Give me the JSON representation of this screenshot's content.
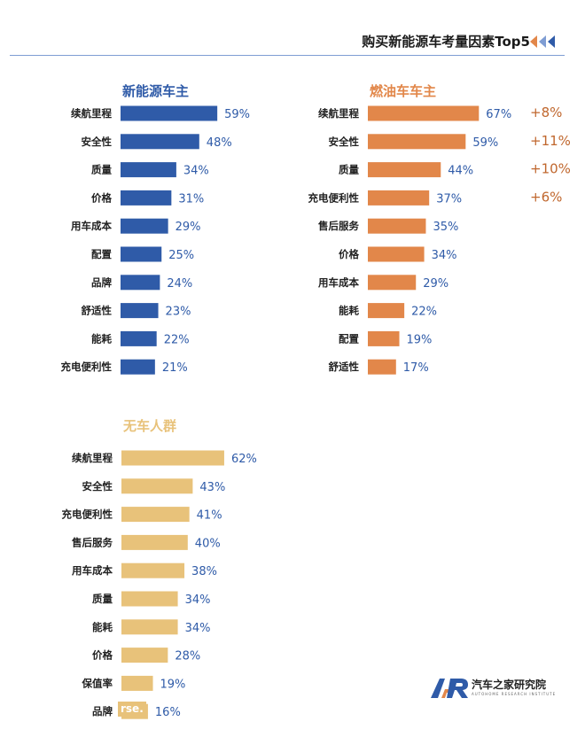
{
  "header": {
    "title": "购买新能源车考量因素Top5"
  },
  "brand": {
    "name": "汽车之家研究院",
    "subtitle": "AUTOHOME RESEARCH INSTITUTE",
    "watermark": "rse."
  },
  "colors": {
    "blue": "#2f5ba8",
    "orange": "#e2874a",
    "yellow": "#e8c27a",
    "value_text": "#2f5ba8",
    "delta_text": "#c0672e"
  },
  "chart_data": [
    {
      "type": "bar",
      "orientation": "horizontal",
      "title": "新能源车主",
      "categories": [
        "续航里程",
        "安全性",
        "质量",
        "价格",
        "用车成本",
        "配置",
        "品牌",
        "舒适性",
        "能耗",
        "充电便利性"
      ],
      "values": [
        59,
        48,
        34,
        31,
        29,
        25,
        24,
        23,
        22,
        21
      ],
      "labels": [
        "59%",
        "48%",
        "34%",
        "31%",
        "29%",
        "25%",
        "24%",
        "23%",
        "22%",
        "21%"
      ],
      "unit": "%"
    },
    {
      "type": "bar",
      "orientation": "horizontal",
      "title": "燃油车车主",
      "categories": [
        "续航里程",
        "安全性",
        "质量",
        "充电便利性",
        "售后服务",
        "价格",
        "用车成本",
        "能耗",
        "配置",
        "舒适性"
      ],
      "values": [
        67,
        59,
        44,
        37,
        35,
        34,
        29,
        22,
        19,
        17
      ],
      "labels": [
        "67%",
        "59%",
        "44%",
        "37%",
        "35%",
        "34%",
        "29%",
        "22%",
        "19%",
        "17%"
      ],
      "deltas": [
        "+8%",
        "+11%",
        "+10%",
        "+6%"
      ],
      "unit": "%"
    },
    {
      "type": "bar",
      "orientation": "horizontal",
      "title": "无车人群",
      "categories": [
        "续航里程",
        "安全性",
        "充电便利性",
        "售后服务",
        "用车成本",
        "质量",
        "能耗",
        "价格",
        "保值率",
        "品牌"
      ],
      "values": [
        62,
        43,
        41,
        40,
        38,
        34,
        34,
        28,
        19,
        16
      ],
      "labels": [
        "62%",
        "43%",
        "41%",
        "40%",
        "38%",
        "34%",
        "34%",
        "28%",
        "19%",
        "16%"
      ],
      "unit": "%"
    }
  ]
}
